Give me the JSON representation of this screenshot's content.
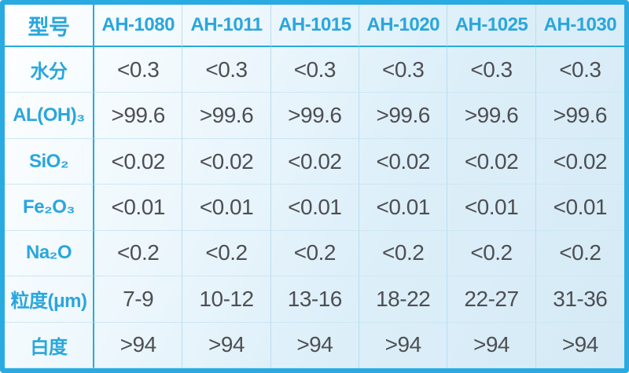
{
  "chart_data": {
    "type": "table",
    "title": "",
    "columns": [
      "型号",
      "AH-1080",
      "AH-1011",
      "AH-1015",
      "AH-1020",
      "AH-1025",
      "AH-1030"
    ],
    "rows": [
      {
        "label": "水分",
        "values": [
          "<0.3",
          "<0.3",
          "<0.3",
          "<0.3",
          "<0.3",
          "<0.3"
        ]
      },
      {
        "label": "AL(OH)₃",
        "values": [
          ">99.6",
          ">99.6",
          ">99.6",
          ">99.6",
          ">99.6",
          ">99.6"
        ]
      },
      {
        "label": "SiO₂",
        "values": [
          "<0.02",
          "<0.02",
          "<0.02",
          "<0.02",
          "<0.02",
          "<0.02"
        ]
      },
      {
        "label": "Fe₂O₃",
        "values": [
          "<0.01",
          "<0.01",
          "<0.01",
          "<0.01",
          "<0.01",
          "<0.01"
        ]
      },
      {
        "label": "Na₂O",
        "values": [
          "<0.2",
          "<0.2",
          "<0.2",
          "<0.2",
          "<0.2",
          "<0.2"
        ]
      },
      {
        "label": "粒度(μm)",
        "values": [
          "7-9",
          "10-12",
          "13-16",
          "18-22",
          "22-27",
          "31-36"
        ]
      },
      {
        "label": "白度",
        "values": [
          ">94",
          ">94",
          ">94",
          ">94",
          ">94",
          ">94"
        ]
      }
    ],
    "layout": {
      "grid": true,
      "header_row": true,
      "label_column": true
    }
  },
  "colors": {
    "accent_border": "#29abe2",
    "heavy_grid_line": "#2aa9db",
    "light_grid_line": "#b9ddf0",
    "label_text": "#2aa6dd",
    "value_text": "#4e4f53",
    "bg_light": "#feffff",
    "bg_blue": "#d5eaf6"
  }
}
